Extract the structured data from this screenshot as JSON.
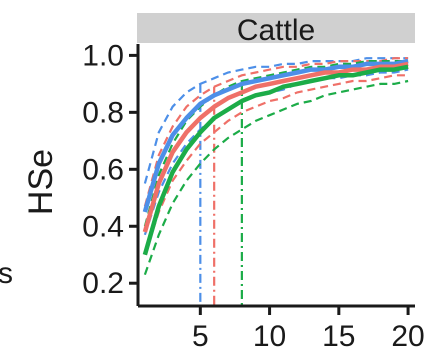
{
  "chart_data": {
    "type": "line",
    "panel_label": "Cattle",
    "left_edge_text": "s",
    "ylabel": "HSe",
    "xlabel": "",
    "xlim": [
      0.5,
      20.5
    ],
    "ylim": [
      0.12,
      1.04
    ],
    "x_ticks": [
      5,
      10,
      15,
      20
    ],
    "y_ticks": [
      0.2,
      0.4,
      0.6,
      0.8,
      1.0
    ],
    "x_tick_labels": [
      "5",
      "10",
      "15",
      "20"
    ],
    "y_tick_labels": [
      "0.2",
      "0.4",
      "0.6",
      "0.8",
      "1.0"
    ],
    "x": [
      1,
      2,
      3,
      4,
      5,
      6,
      7,
      8,
      9,
      10,
      11,
      12,
      13,
      14,
      15,
      16,
      17,
      18,
      19,
      20
    ],
    "series": [
      {
        "color": "#4d8fe8",
        "mean": [
          0.45,
          0.62,
          0.72,
          0.78,
          0.83,
          0.86,
          0.88,
          0.9,
          0.91,
          0.92,
          0.93,
          0.94,
          0.95,
          0.95,
          0.96,
          0.96,
          0.97,
          0.97,
          0.97,
          0.98
        ],
        "upper": [
          0.55,
          0.73,
          0.82,
          0.87,
          0.9,
          0.92,
          0.94,
          0.95,
          0.96,
          0.96,
          0.97,
          0.97,
          0.98,
          0.98,
          0.98,
          0.98,
          0.99,
          0.99,
          0.99,
          0.99
        ],
        "lower": [
          0.37,
          0.52,
          0.62,
          0.69,
          0.74,
          0.78,
          0.81,
          0.84,
          0.86,
          0.87,
          0.88,
          0.9,
          0.91,
          0.92,
          0.92,
          0.93,
          0.93,
          0.94,
          0.94,
          0.95
        ],
        "threshold_x": 5
      },
      {
        "color": "#ef7068",
        "mean": [
          0.38,
          0.55,
          0.66,
          0.73,
          0.78,
          0.82,
          0.85,
          0.87,
          0.89,
          0.9,
          0.91,
          0.92,
          0.93,
          0.94,
          0.94,
          0.95,
          0.95,
          0.96,
          0.96,
          0.97
        ],
        "upper": [
          0.47,
          0.65,
          0.75,
          0.82,
          0.86,
          0.89,
          0.91,
          0.93,
          0.94,
          0.95,
          0.96,
          0.96,
          0.97,
          0.97,
          0.98,
          0.98,
          0.98,
          0.98,
          0.99,
          0.99
        ],
        "lower": [
          0.3,
          0.45,
          0.56,
          0.63,
          0.69,
          0.73,
          0.77,
          0.8,
          0.82,
          0.84,
          0.85,
          0.87,
          0.88,
          0.89,
          0.9,
          0.91,
          0.91,
          0.92,
          0.93,
          0.93
        ],
        "threshold_x": 6
      },
      {
        "color": "#1cac48",
        "mean": [
          0.3,
          0.47,
          0.59,
          0.67,
          0.73,
          0.78,
          0.81,
          0.84,
          0.86,
          0.87,
          0.89,
          0.9,
          0.91,
          0.92,
          0.93,
          0.93,
          0.94,
          0.95,
          0.95,
          0.96
        ],
        "upper": [
          0.4,
          0.58,
          0.69,
          0.77,
          0.82,
          0.86,
          0.89,
          0.91,
          0.92,
          0.93,
          0.94,
          0.95,
          0.96,
          0.96,
          0.97,
          0.97,
          0.98,
          0.98,
          0.98,
          0.98
        ],
        "lower": [
          0.23,
          0.37,
          0.48,
          0.56,
          0.62,
          0.67,
          0.71,
          0.74,
          0.77,
          0.79,
          0.81,
          0.83,
          0.84,
          0.86,
          0.87,
          0.88,
          0.89,
          0.9,
          0.9,
          0.91
        ],
        "threshold_x": 8
      }
    ]
  }
}
